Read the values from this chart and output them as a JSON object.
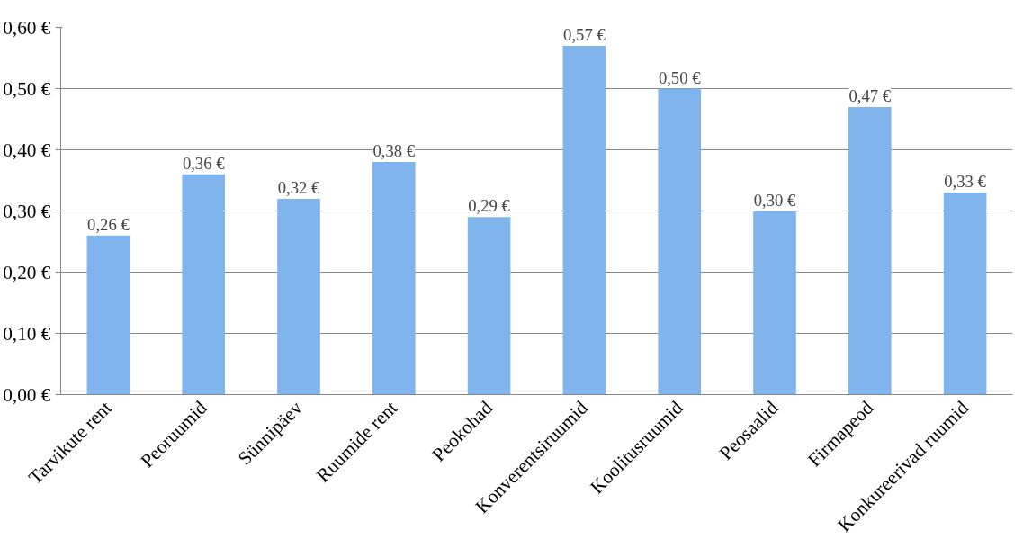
{
  "chart_data": {
    "type": "bar",
    "categories": [
      "Tarvikute rent",
      "Peoruumid",
      "Sünnipäev",
      "Ruumide rent",
      "Peokohad",
      "Konverentsiruumid",
      "Koolitusruumid",
      "Peosaalid",
      "Firmapeod",
      "Konkureerivad ruumid"
    ],
    "values": [
      0.26,
      0.36,
      0.32,
      0.38,
      0.29,
      0.57,
      0.5,
      0.3,
      0.47,
      0.33
    ],
    "value_labels": [
      "0,26 €",
      "0,36 €",
      "0,32 €",
      "0,38 €",
      "0,29 €",
      "0,57 €",
      "0,50 €",
      "0,30 €",
      "0,47 €",
      "0,33 €"
    ],
    "color": "#80b4ec",
    "ylim": [
      0,
      0.6
    ],
    "yticks": [
      {
        "value": 0,
        "label": "0,00 €"
      },
      {
        "value": 0.1,
        "label": "0,10 €"
      },
      {
        "value": 0.2,
        "label": "0,20 €"
      },
      {
        "value": 0.3,
        "label": "0,30 €"
      },
      {
        "value": 0.4,
        "label": "0,40 €"
      },
      {
        "value": 0.5,
        "label": "0,50 €"
      },
      {
        "value": 0.6,
        "label": "0,60 €"
      }
    ],
    "grid": "y"
  }
}
